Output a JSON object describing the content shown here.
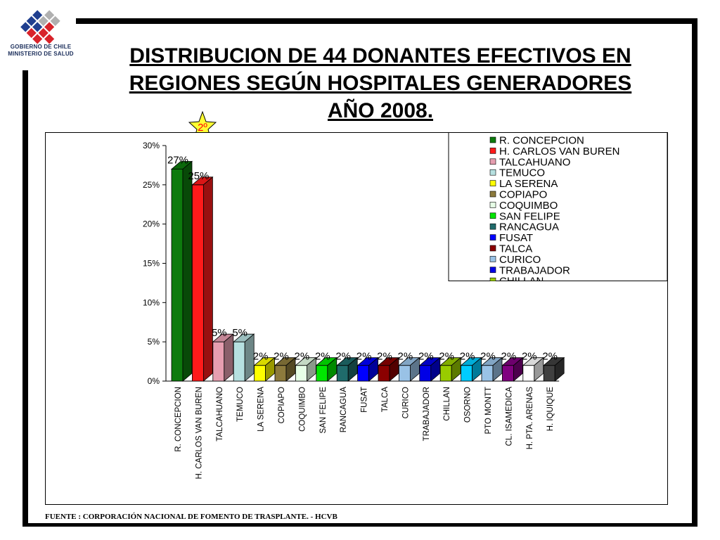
{
  "header": {
    "logo_line1": "GOBIERNO DE CHILE",
    "logo_line2": "MINISTERIO DE SALUD",
    "title_lines": [
      "DISTRIBUCION DE 44 DONANTES EFECTIVOS EN",
      "REGIONES SEGÚN HOSPITALES GENERADORES",
      "AÑO 2008."
    ],
    "badge": "2º"
  },
  "chart_data": {
    "type": "bar",
    "categories": [
      "R. CONCEPCION",
      "H. CARLOS VAN BUREN",
      "TALCAHUANO",
      "TEMUCO",
      "LA SERENA",
      "COPIAPO",
      "COQUIMBO",
      "SAN FELIPE",
      "RANCAGUA",
      "FUSAT",
      "TALCA",
      "CURICO",
      "TRABAJADOR",
      "CHILLAN",
      "OSORNO",
      "PTO MONTT",
      "CL. ISAMEDICA",
      "H. PTA. ARENAS",
      "H. IQUIQUE"
    ],
    "values": [
      27,
      25,
      5,
      5,
      2,
      2,
      2,
      2,
      2,
      2,
      2,
      2,
      2,
      2,
      2,
      2,
      2,
      2,
      2
    ],
    "data_labels": [
      "27%",
      "25%",
      "5%",
      "5%",
      "2%",
      "2%",
      "2%",
      "2%",
      "2%",
      "2%",
      "2%",
      "2%",
      "2%",
      "2%",
      "2%",
      "2%",
      "2%",
      "2%",
      "2%"
    ],
    "colors": [
      "#0d7a0d",
      "#ff1a1a",
      "#e69eb0",
      "#b6e0e0",
      "#ffff00",
      "#8c7a3c",
      "#e6ffe6",
      "#00e600",
      "#1f6b6b",
      "#0000ff",
      "#8b0000",
      "#99c2e6",
      "#0000e6",
      "#99cc00",
      "#00ccff",
      "#99c2e6",
      "#800080",
      "#ffffff",
      "#404040"
    ],
    "yticks": [
      "0%",
      "5%",
      "10%",
      "15%",
      "20%",
      "25%",
      "30%"
    ],
    "ylim": [
      0,
      30
    ],
    "legend_position": "top-right",
    "legend_entries": [
      "R. CONCEPCION",
      "H. CARLOS VAN BUREN",
      "TALCAHUANO",
      "TEMUCO",
      "LA SERENA",
      "COPIAPO",
      "COQUIMBO",
      "SAN FELIPE",
      "RANCAGUA",
      "FUSAT",
      "TALCA",
      "CURICO",
      "TRABAJADOR",
      "CHILLAN"
    ],
    "grid": false
  },
  "footer": {
    "source": "FUENTE : CORPORACIÓN NACIONAL DE FOMENTO DE TRASPLANTE. - HCVB"
  }
}
